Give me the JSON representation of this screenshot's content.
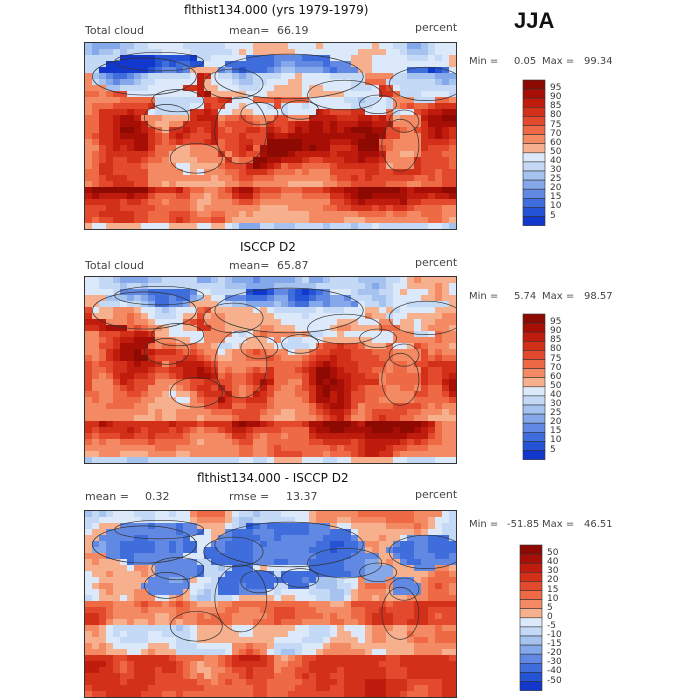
{
  "season": "JJA",
  "colors": {
    "pos": [
      "#fff1e6",
      "#fbd3b8",
      "#f7b08e",
      "#f38a63",
      "#ee6a44",
      "#e34a2d",
      "#d3301a",
      "#bf1c0e",
      "#a70e06",
      "#8c0a02"
    ],
    "neg": [
      "#dbe9fb",
      "#c3d9f6",
      "#a6c3f0",
      "#84a8ea",
      "#6189e3",
      "#3f6ddc",
      "#2453d5",
      "#1237cc",
      "#0722ae",
      "#06137f"
    ],
    "land": "#333333"
  },
  "chart_data": [
    {
      "type": "heatmap",
      "title": "flthist134.000 (yrs 1979-1979)",
      "variable": "Total cloud",
      "stat_label": "mean=",
      "stat_value": "66.19",
      "units": "percent",
      "min_label": "Min =",
      "min_value": "0.05",
      "max_label": "Max =",
      "max_value": "99.34",
      "colorbar_levels": [
        "95",
        "90",
        "85",
        "80",
        "75",
        "70",
        "60",
        "50",
        "40",
        "30",
        "25",
        "20",
        "15",
        "10",
        "5"
      ]
    },
    {
      "type": "heatmap",
      "title": "ISCCP D2",
      "variable": "Total cloud",
      "stat_label": "mean=",
      "stat_value": "65.87",
      "units": "percent",
      "min_label": "Min =",
      "min_value": "5.74",
      "max_label": "Max =",
      "max_value": "98.57",
      "colorbar_levels": [
        "95",
        "90",
        "85",
        "80",
        "75",
        "70",
        "60",
        "50",
        "40",
        "30",
        "25",
        "20",
        "15",
        "10",
        "5"
      ]
    },
    {
      "type": "heatmap",
      "title": "flthist134.000 - ISCCP D2",
      "stat1_label": "mean =",
      "stat1_value": "0.32",
      "stat2_label": "rmse =",
      "stat2_value": "13.37",
      "units": "percent",
      "min_label": "Min =",
      "min_value": "-51.85",
      "max_label": "Max =",
      "max_value": "46.51",
      "colorbar_levels": [
        "50",
        "40",
        "30",
        "20",
        "15",
        "10",
        "5",
        "0",
        "-5",
        "-10",
        "-15",
        "-20",
        "-30",
        "-40",
        "-50"
      ]
    }
  ]
}
